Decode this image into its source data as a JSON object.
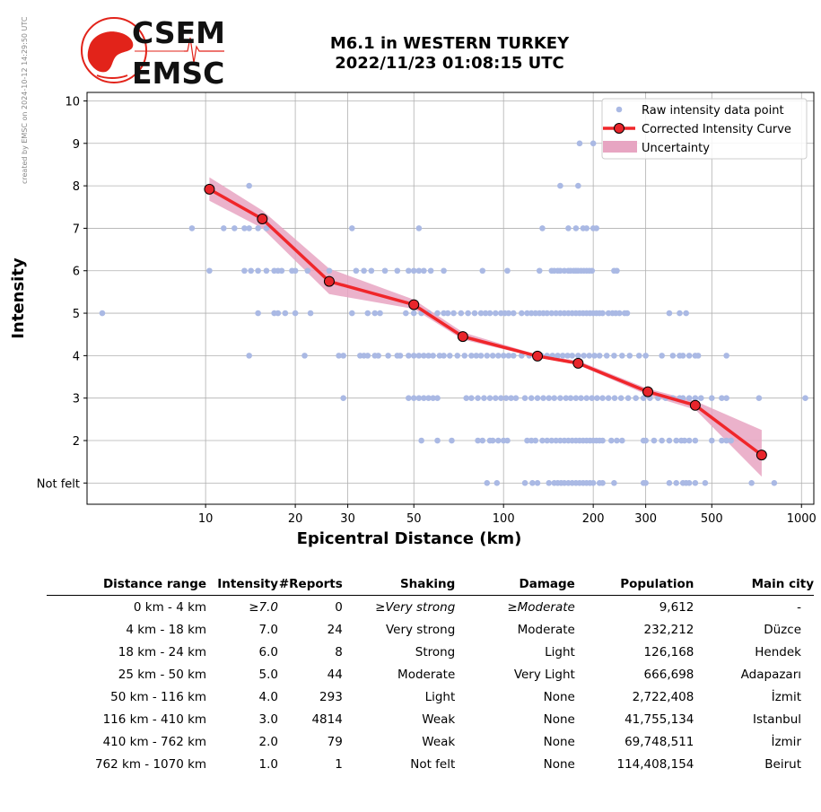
{
  "side_note": "created by EMSC on 2024-10-12 14:29:50 UTC",
  "logo": {
    "line1": "CSEM",
    "line2": "EMSC",
    "color": "#e2231a"
  },
  "title": {
    "line1": "M6.1 in WESTERN TURKEY",
    "line2": "2022/11/23 01:08:15 UTC"
  },
  "chart_data": {
    "type": "scatter",
    "x_scale": "log",
    "xlabel": "Epicentral Distance (km)",
    "ylabel": "Intensity",
    "xlim": [
      4,
      1100
    ],
    "ylim": [
      0.5,
      10.2
    ],
    "x_ticks": [
      10,
      20,
      30,
      50,
      100,
      200,
      300,
      500,
      1000
    ],
    "y_ticks": [
      1,
      2,
      3,
      4,
      5,
      6,
      7,
      8,
      9,
      10
    ],
    "y_tick_labels": [
      "Not felt",
      "2",
      "3",
      "4",
      "5",
      "6",
      "7",
      "8",
      "9",
      "10"
    ],
    "grid": true,
    "legend_position": "top-right",
    "legend": [
      "Raw intensity data point",
      "Corrected Intensity Curve",
      "Uncertainty"
    ],
    "colors": {
      "raw": "#aab9e4",
      "curve": "#f0262a",
      "marker_fill": "#e8252b",
      "uncertainty": "#e7a5c2"
    },
    "raw_points": [
      {
        "y": 10,
        "x": []
      },
      {
        "y": 9,
        "x": [
          180,
          200
        ]
      },
      {
        "y": 8,
        "x": [
          14,
          155,
          178
        ]
      },
      {
        "y": 7,
        "x": [
          9,
          11.5,
          12.5,
          13.5,
          14,
          15,
          16,
          31,
          52,
          135,
          165,
          175,
          185,
          190,
          200,
          205
        ]
      },
      {
        "y": 6,
        "x": [
          10.3,
          13.5,
          14.2,
          15,
          16,
          17,
          17.5,
          18,
          19.5,
          20,
          22,
          26,
          32,
          34,
          36,
          40,
          44,
          48,
          50,
          52,
          54,
          57,
          63,
          85,
          103,
          132,
          145,
          148,
          152,
          155,
          160,
          165,
          168,
          172,
          175,
          178,
          182,
          186,
          190,
          194,
          198,
          235,
          240
        ]
      },
      {
        "y": 5,
        "x": [
          4.5,
          15,
          17,
          17.5,
          18.5,
          20,
          22.5,
          31,
          35,
          37,
          38.5,
          47,
          50,
          53,
          56,
          60,
          63,
          65,
          68,
          72,
          76,
          80,
          84,
          87,
          90,
          94,
          98,
          101,
          104,
          108,
          115,
          120,
          124,
          128,
          132,
          136,
          140,
          145,
          150,
          155,
          160,
          165,
          170,
          175,
          180,
          185,
          190,
          195,
          200,
          205,
          210,
          215,
          225,
          232,
          238,
          245,
          255,
          260,
          360,
          390,
          410
        ]
      },
      {
        "y": 4,
        "x": [
          14,
          21.5,
          28,
          29,
          33,
          34,
          35,
          37,
          38,
          41,
          44,
          45,
          48,
          50,
          52,
          54,
          56,
          58,
          61,
          63,
          66,
          70,
          74,
          78,
          81,
          84,
          88,
          92,
          96,
          100,
          104,
          108,
          115,
          122,
          128,
          134,
          140,
          146,
          152,
          158,
          164,
          170,
          178,
          186,
          194,
          202,
          210,
          222,
          235,
          250,
          265,
          285,
          300,
          340,
          370,
          390,
          400,
          420,
          440,
          450,
          560
        ]
      },
      {
        "y": 3,
        "x": [
          29,
          48,
          50,
          52,
          54,
          56,
          58,
          60,
          75,
          78,
          82,
          86,
          90,
          94,
          98,
          102,
          106,
          110,
          118,
          124,
          130,
          136,
          142,
          148,
          155,
          162,
          168,
          175,
          182,
          190,
          198,
          206,
          215,
          225,
          236,
          248,
          262,
          278,
          295,
          310,
          330,
          350,
          370,
          390,
          400,
          420,
          440,
          460,
          500,
          540,
          560,
          720,
          1030
        ]
      },
      {
        "y": 2,
        "x": [
          53,
          60,
          67,
          82,
          85,
          90,
          92,
          96,
          100,
          103,
          120,
          124,
          128,
          135,
          140,
          145,
          150,
          155,
          160,
          165,
          170,
          175,
          180,
          185,
          190,
          195,
          200,
          205,
          210,
          215,
          230,
          240,
          250,
          295,
          300,
          320,
          340,
          360,
          380,
          395,
          405,
          420,
          440,
          500,
          540,
          560,
          580
        ]
      },
      {
        "y": 1,
        "x": [
          88,
          95,
          118,
          125,
          130,
          142,
          148,
          152,
          156,
          160,
          165,
          170,
          175,
          180,
          185,
          190,
          195,
          200,
          210,
          215,
          235,
          295,
          300,
          360,
          380,
          400,
          410,
          420,
          440,
          475,
          680,
          810
        ]
      }
    ],
    "curve": {
      "x": [
        10.3,
        15.5,
        26,
        50,
        73,
        130,
        178,
        305,
        440,
        735
      ],
      "y": [
        7.92,
        7.22,
        5.75,
        5.2,
        4.45,
        3.99,
        3.82,
        3.15,
        2.83,
        1.66
      ],
      "lower": [
        7.65,
        7.0,
        5.45,
        5.1,
        4.38,
        3.96,
        3.78,
        3.07,
        2.73,
        1.15
      ],
      "upper": [
        8.2,
        7.42,
        6.05,
        5.32,
        4.55,
        4.02,
        3.88,
        3.22,
        2.93,
        2.25
      ]
    }
  },
  "table": {
    "headers": [
      "Distance range",
      "Intensity",
      "#Reports",
      "Shaking",
      "Damage",
      "Population",
      "Main city"
    ],
    "rows": [
      [
        "0 km -    4 km",
        "≥7.0",
        "0",
        "≥Very strong",
        "≥Moderate",
        "9,612",
        "-"
      ],
      [
        "4 km -   18 km",
        "7.0",
        "24",
        "Very strong",
        "Moderate",
        "232,212",
        "Düzce"
      ],
      [
        "18 km -   24 km",
        "6.0",
        "8",
        "Strong",
        "Light",
        "126,168",
        "Hendek"
      ],
      [
        "25 km -   50 km",
        "5.0",
        "44",
        "Moderate",
        "Very Light",
        "666,698",
        "Adapazarı"
      ],
      [
        "50 km -  116 km",
        "4.0",
        "293",
        "Light",
        "None",
        "2,722,408",
        "İzmit"
      ],
      [
        "116 km -  410 km",
        "3.0",
        "4814",
        "Weak",
        "None",
        "41,755,134",
        "Istanbul"
      ],
      [
        "410 km -  762 km",
        "2.0",
        "79",
        "Weak",
        "None",
        "69,748,511",
        "İzmir"
      ],
      [
        "762 km - 1070 km",
        "1.0",
        "1",
        "Not felt",
        "None",
        "114,408,154",
        "Beirut"
      ]
    ]
  }
}
